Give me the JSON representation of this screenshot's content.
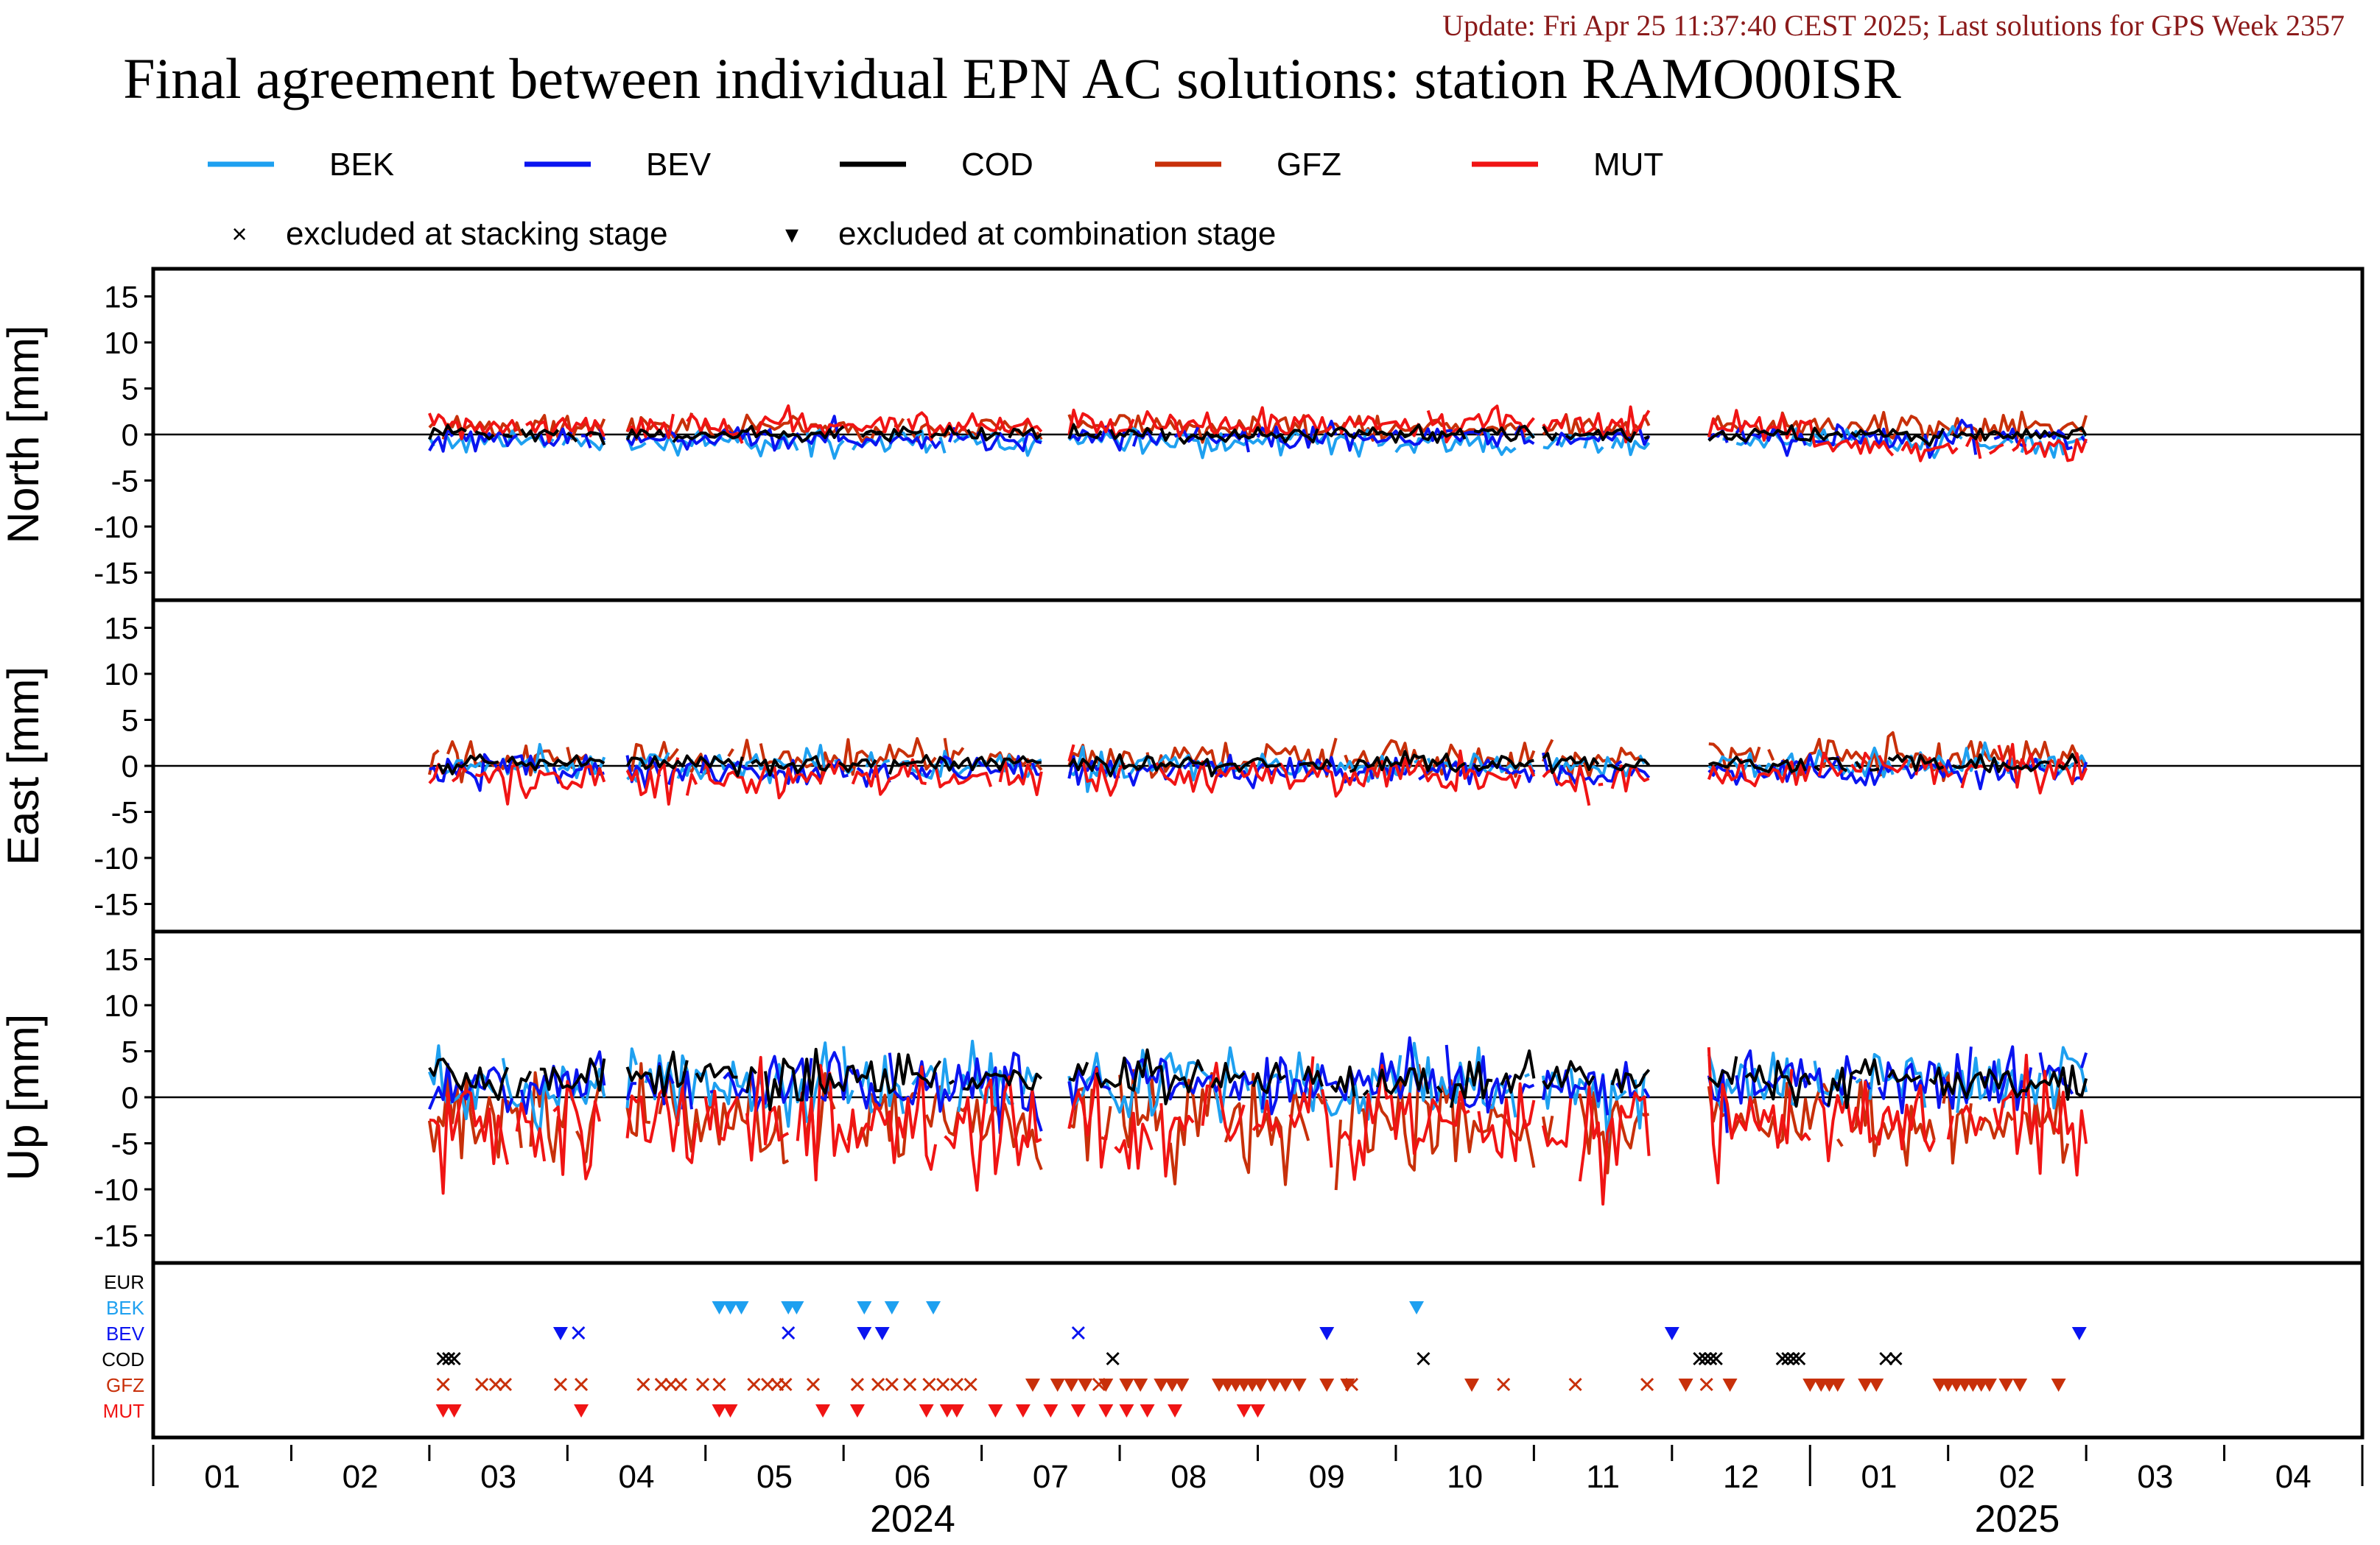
{
  "header": {
    "update_text": "Update: Fri Apr 25 11:37:40 CEST 2025; Last solutions for GPS Week 2357",
    "update_color": "#8b1a1a",
    "title": "Final agreement between individual EPN AC solutions: station RAMO00ISR"
  },
  "legend": {
    "series": [
      {
        "name": "BEK",
        "color": "#1ea0f0"
      },
      {
        "name": "BEV",
        "color": "#0a14f0"
      },
      {
        "name": "COD",
        "color": "#000000"
      },
      {
        "name": "GFZ",
        "color": "#c8300a"
      },
      {
        "name": "MUT",
        "color": "#f01414"
      }
    ],
    "markers": [
      {
        "symbol": "×",
        "label": "excluded at stacking stage"
      },
      {
        "symbol": "▾",
        "label": "excluded at combination stage"
      }
    ]
  },
  "chart_data": {
    "type": "line",
    "x_range": [
      "2024-01-01",
      "2025-04-30"
    ],
    "x_months": [
      "01",
      "02",
      "03",
      "04",
      "05",
      "06",
      "07",
      "08",
      "09",
      "10",
      "11",
      "12",
      "01",
      "02",
      "03",
      "04"
    ],
    "x_years": [
      {
        "label": "2024",
        "month_index": 5.5
      },
      {
        "label": "2025",
        "month_index": 13.5
      }
    ],
    "data_start_month": 2.0,
    "data_end_month": 14.0,
    "gaps_months": [
      [
        3.28,
        3.4
      ],
      [
        6.45,
        6.6
      ],
      [
        10.0,
        10.05
      ],
      [
        10.85,
        11.25
      ]
    ],
    "series_names": [
      "BEK",
      "BEV",
      "COD",
      "GFZ",
      "MUT"
    ],
    "panels": [
      {
        "ylabel": "North [mm]",
        "ylim": [
          -18,
          18
        ],
        "yticks": [
          15,
          10,
          5,
          0,
          -5,
          -10,
          -15
        ],
        "typical": {
          "BEK": [
            -0.8,
            1.0
          ],
          "BEV": [
            -0.4,
            1.0
          ],
          "COD": [
            0.0,
            0.6
          ],
          "GFZ": [
            0.8,
            1.0
          ],
          "MUT": [
            1.0,
            1.2
          ]
        },
        "late_mut_offset": -2.5
      },
      {
        "ylabel": "East [mm]",
        "ylim": [
          -18,
          18
        ],
        "yticks": [
          15,
          10,
          5,
          0,
          -5,
          -10,
          -15
        ],
        "typical": {
          "BEK": [
            0.0,
            1.2
          ],
          "BEV": [
            -0.6,
            1.2
          ],
          "COD": [
            0.2,
            0.7
          ],
          "GFZ": [
            0.8,
            1.4
          ],
          "MUT": [
            -1.2,
            1.5
          ]
        },
        "late_mut_offset": 1.0
      },
      {
        "ylabel": "Up [mm]",
        "ylim": [
          -18,
          18
        ],
        "yticks": [
          15,
          10,
          5,
          0,
          -5,
          -10,
          -15
        ],
        "typical": {
          "BEK": [
            1.0,
            3.0
          ],
          "BEV": [
            1.5,
            2.5
          ],
          "COD": [
            2.0,
            1.8
          ],
          "GFZ": [
            -2.5,
            3.5
          ],
          "MUT": [
            -3.0,
            3.8
          ]
        },
        "late_mut_offset": 0.0
      }
    ],
    "exclusion_panel": {
      "rows": [
        {
          "name": "EUR",
          "color": "#000000"
        },
        {
          "name": "BEK",
          "color": "#1ea0f0"
        },
        {
          "name": "BEV",
          "color": "#0a14f0"
        },
        {
          "name": "COD",
          "color": "#000000"
        },
        {
          "name": "GFZ",
          "color": "#c8300a"
        },
        {
          "name": "MUT",
          "color": "#f01414"
        }
      ],
      "events": [
        {
          "row": "BEK",
          "kind": "tri",
          "months": [
            4.1,
            4.18,
            4.26,
            4.6,
            4.66,
            5.15,
            5.35,
            5.65,
            9.15
          ]
        },
        {
          "row": "BEV",
          "kind": "tri",
          "months": [
            2.95,
            5.15,
            5.28,
            8.5,
            11.0,
            13.95
          ]
        },
        {
          "row": "BEV",
          "kind": "x",
          "months": [
            3.08,
            4.6,
            6.7
          ]
        },
        {
          "row": "COD",
          "kind": "x",
          "months": [
            2.1,
            2.14,
            2.18,
            6.95,
            9.2,
            11.2,
            11.24,
            11.28,
            11.32,
            11.8,
            11.84,
            11.88,
            11.92,
            12.55,
            12.62
          ]
        },
        {
          "row": "GFZ",
          "kind": "x",
          "months": [
            2.1,
            2.38,
            2.48,
            2.55,
            2.95,
            3.1,
            3.55,
            3.68,
            3.75,
            3.82,
            3.98,
            4.1,
            4.35,
            4.45,
            4.52,
            4.58,
            4.78,
            5.1,
            5.25,
            5.35,
            5.48,
            5.62,
            5.72,
            5.82,
            5.92,
            6.85,
            8.68,
            9.78,
            10.3,
            10.82,
            11.25
          ]
        },
        {
          "row": "GFZ",
          "kind": "tri",
          "months": [
            6.37,
            6.55,
            6.65,
            6.75,
            6.9,
            7.05,
            7.15,
            7.3,
            7.38,
            7.45,
            7.72,
            7.78,
            7.84,
            7.9,
            7.96,
            8.02,
            8.12,
            8.2,
            8.3,
            8.5,
            8.65,
            9.55,
            11.1,
            11.42,
            12.0,
            12.08,
            12.14,
            12.2,
            12.4,
            12.48,
            12.94,
            13.0,
            13.06,
            13.12,
            13.18,
            13.24,
            13.3,
            13.42,
            13.52,
            13.8
          ]
        },
        {
          "row": "MUT",
          "kind": "tri",
          "months": [
            2.1,
            2.18,
            3.1,
            4.1,
            4.18,
            4.85,
            5.1,
            5.6,
            5.75,
            5.82,
            6.1,
            6.3,
            6.5,
            6.7,
            6.9,
            7.05,
            7.2,
            7.4,
            7.9,
            8.0
          ]
        }
      ]
    }
  }
}
